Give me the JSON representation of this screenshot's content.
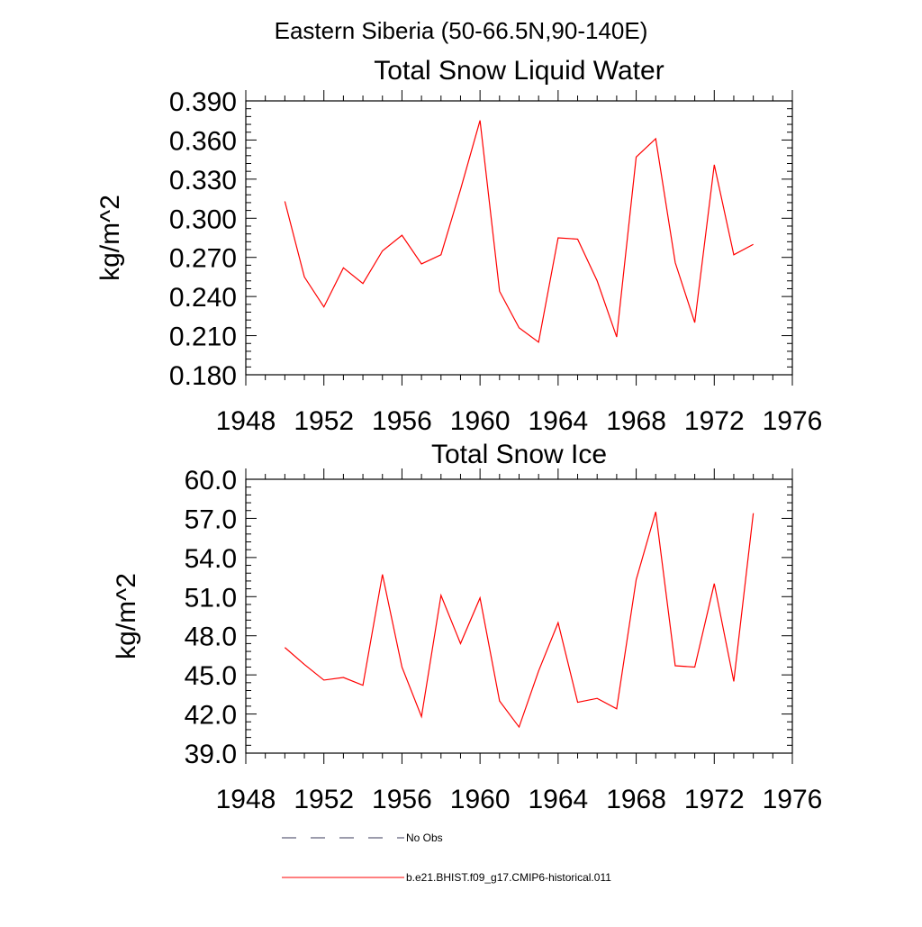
{
  "suptitle": "Eastern Siberia (50-66.5N,90-140E)",
  "chart_data": [
    {
      "type": "line",
      "title": "Total Snow Liquid Water",
      "ylabel": "kg/m^2",
      "xlabel": "",
      "xlim": [
        1948,
        1976
      ],
      "ylim": [
        0.18,
        0.39
      ],
      "xticks": [
        "1948",
        "1952",
        "1956",
        "1960",
        "1964",
        "1968",
        "1972",
        "1976"
      ],
      "yticks": [
        "0.180",
        "0.210",
        "0.240",
        "0.270",
        "0.300",
        "0.330",
        "0.360",
        "0.390"
      ],
      "x": [
        1950,
        1951,
        1952,
        1953,
        1954,
        1955,
        1956,
        1957,
        1958,
        1959,
        1960,
        1961,
        1962,
        1963,
        1964,
        1965,
        1966,
        1967,
        1968,
        1969,
        1970,
        1971,
        1972,
        1973,
        1974
      ],
      "series": [
        {
          "name": "b.e21.BHIST.f09_g17.CMIP6-historical.011",
          "color": "#ff0000",
          "values": [
            0.313,
            0.255,
            0.232,
            0.262,
            0.25,
            0.275,
            0.287,
            0.265,
            0.272,
            0.322,
            0.375,
            0.244,
            0.216,
            0.205,
            0.285,
            0.284,
            0.252,
            0.209,
            0.347,
            0.361,
            0.266,
            0.22,
            0.341,
            0.272,
            0.28
          ]
        }
      ]
    },
    {
      "type": "line",
      "title": "Total Snow Ice",
      "ylabel": "kg/m^2",
      "xlabel": "",
      "xlim": [
        1948,
        1976
      ],
      "ylim": [
        39.0,
        60.0
      ],
      "xticks": [
        "1948",
        "1952",
        "1956",
        "1960",
        "1964",
        "1968",
        "1972",
        "1976"
      ],
      "yticks": [
        "39.0",
        "42.0",
        "45.0",
        "48.0",
        "51.0",
        "54.0",
        "57.0",
        "60.0"
      ],
      "x": [
        1950,
        1951,
        1952,
        1953,
        1954,
        1955,
        1956,
        1957,
        1958,
        1959,
        1960,
        1961,
        1962,
        1963,
        1964,
        1965,
        1966,
        1967,
        1968,
        1969,
        1970,
        1971,
        1972,
        1973,
        1974
      ],
      "series": [
        {
          "name": "b.e21.BHIST.f09_g17.CMIP6-historical.011",
          "color": "#ff0000",
          "values": [
            47.1,
            45.8,
            44.6,
            44.8,
            44.2,
            52.7,
            45.6,
            41.8,
            51.1,
            47.4,
            50.9,
            43.0,
            41.0,
            45.3,
            49.0,
            42.9,
            43.2,
            42.4,
            52.3,
            57.5,
            45.7,
            45.6,
            52.0,
            44.5,
            57.4
          ]
        }
      ]
    }
  ],
  "legend": [
    {
      "label": "No Obs",
      "style": "dashed",
      "color": "#3a3a5a"
    },
    {
      "label": "b.e21.BHIST.f09_g17.CMIP6-historical.011",
      "style": "solid",
      "color": "#ff0000"
    }
  ]
}
